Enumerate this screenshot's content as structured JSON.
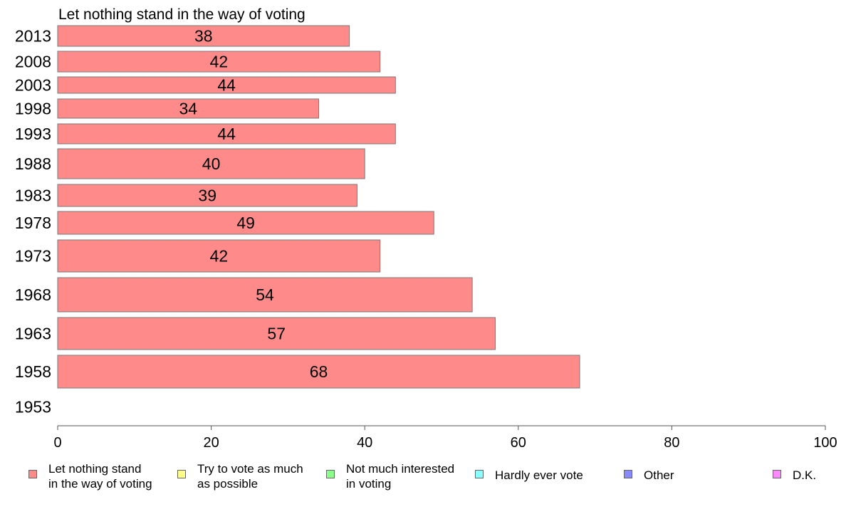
{
  "chart_data": {
    "type": "bar",
    "orientation": "horizontal",
    "title": "Let nothing stand in the way of voting",
    "categories": [
      "2013",
      "2008",
      "2003",
      "1998",
      "1993",
      "1988",
      "1983",
      "1978",
      "1973",
      "1968",
      "1963",
      "1958",
      "1953"
    ],
    "values": [
      38,
      42,
      44,
      34,
      44,
      40,
      39,
      49,
      42,
      54,
      57,
      68,
      null
    ],
    "data_labels": [
      "38",
      "42",
      "44",
      "34",
      "44",
      "40",
      "39",
      "49",
      "42",
      "54",
      "57",
      "68",
      ""
    ],
    "xlim": [
      0,
      100
    ],
    "x_ticks": [
      "0",
      "20",
      "40",
      "60",
      "80",
      "100"
    ],
    "xlabel": "",
    "ylabel": "",
    "grid": false,
    "legend_position": "bottom",
    "bar_color": "#ff8a8a",
    "legend": [
      {
        "label": "Let nothing stand\nin the way of voting",
        "color": "#ff8a8a"
      },
      {
        "label": "Try to vote as much\nas possible",
        "color": "#ffff8a"
      },
      {
        "label": "Not much interested\nin voting",
        "color": "#8aff8a"
      },
      {
        "label": "Hardly ever vote",
        "color": "#8affff"
      },
      {
        "label": "Other",
        "color": "#8a8aff"
      },
      {
        "label": "D.K.",
        "color": "#ff8aff"
      }
    ]
  }
}
